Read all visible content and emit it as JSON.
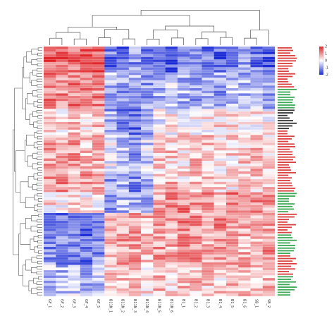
{
  "chart_data": {
    "type": "heatmap",
    "title": "",
    "xlabel": "",
    "ylabel": "",
    "columns": [
      "GF_1",
      "GF_2",
      "GF_3",
      "GF_4",
      "GF_5",
      "B11N_1",
      "B11N_2",
      "B11N_3",
      "B11N_4",
      "B11N_5",
      "B11N_6",
      "B1_1",
      "B1_2",
      "B1_3",
      "B1_4",
      "B1_5",
      "B1_6",
      "SB_1",
      "SB_2"
    ],
    "value_range": [
      -2,
      2
    ],
    "row_count": 96,
    "row_groups": [
      {
        "rows": 10,
        "profile": [
          1.5,
          1.5,
          1.4,
          1.4,
          1.5,
          -1.2,
          -1.4,
          -1.0,
          -1.3,
          -1.1,
          -1.6,
          -1.2,
          -1.0,
          -1.3,
          -1.5,
          -1.1,
          -0.9,
          -1.2,
          -1.4
        ]
      },
      {
        "rows": 14,
        "profile": [
          1.2,
          1.1,
          1.2,
          1.0,
          1.1,
          -0.7,
          -0.9,
          -0.6,
          -1.0,
          -0.8,
          -0.5,
          -0.7,
          -0.9,
          -0.6,
          -0.8,
          -0.5,
          -0.7,
          -0.6,
          -0.8
        ]
      },
      {
        "rows": 10,
        "profile": [
          0.6,
          0.4,
          0.5,
          0.3,
          0.6,
          -0.8,
          -1.1,
          -1.4,
          -0.9,
          -0.2,
          0.1,
          0.3,
          0.2,
          0.1,
          0.3,
          0.2,
          0.1,
          0.2,
          0.1
        ]
      },
      {
        "rows": 14,
        "profile": [
          0.8,
          0.7,
          0.9,
          0.6,
          0.8,
          -0.3,
          -0.6,
          -0.9,
          -0.4,
          0.4,
          0.5,
          0.4,
          0.6,
          0.5,
          0.3,
          0.4,
          0.5,
          0.6,
          0.4
        ]
      },
      {
        "rows": 8,
        "profile": [
          0.9,
          1.0,
          0.8,
          1.0,
          0.9,
          -1.0,
          -0.8,
          -1.1,
          -0.9,
          0.5,
          0.6,
          0.4,
          0.5,
          0.6,
          0.5,
          0.3,
          0.4,
          0.5,
          0.6
        ]
      },
      {
        "rows": 8,
        "profile": [
          0.3,
          0.2,
          0.4,
          0.1,
          0.3,
          -0.8,
          -0.6,
          -0.9,
          -0.7,
          0.9,
          1.0,
          1.1,
          0.9,
          1.0,
          0.8,
          1.1,
          1.2,
          1.0,
          0.9
        ]
      },
      {
        "rows": 20,
        "profile": [
          -1.0,
          -1.2,
          -1.1,
          -1.3,
          -1.0,
          0.7,
          0.9,
          0.8,
          0.6,
          0.9,
          0.8,
          1.0,
          0.9,
          0.8,
          1.0,
          0.9,
          0.7,
          0.8,
          0.9
        ]
      },
      {
        "rows": 12,
        "profile": [
          -0.5,
          -0.6,
          -0.4,
          -0.7,
          -0.5,
          0.5,
          0.7,
          0.6,
          0.4,
          0.6,
          0.5,
          0.7,
          0.6,
          0.5,
          0.4,
          0.6,
          0.7,
          0.5,
          0.6
        ]
      }
    ],
    "row_label_color_groups": [
      "red",
      "red",
      "green",
      "black",
      "red",
      "red",
      "red",
      "green",
      "red",
      "green",
      "red",
      "green"
    ],
    "colors": {
      "low": "#1a2bd6",
      "mid": "#ffffff",
      "high": "#e0262b",
      "label_red": "#d42020",
      "label_green": "#1f9a3a",
      "label_black": "#111111"
    },
    "legend": {
      "position": "top-right",
      "ticks": [
        "2",
        "1",
        "0",
        "-1",
        "-2"
      ]
    },
    "dendrograms": {
      "rows": "left",
      "columns": "top"
    },
    "grid": false
  }
}
